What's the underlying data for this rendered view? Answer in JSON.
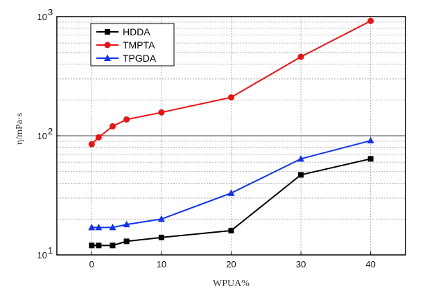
{
  "chart_data": {
    "type": "line",
    "xlabel": "WPUA%",
    "ylabel": "η/mPa·s",
    "yscale": "log",
    "xlim": [
      -5,
      45
    ],
    "ylim": [
      10,
      1000
    ],
    "grid": true,
    "legend_position": "top-left",
    "x_ticks": [
      0,
      10,
      20,
      30,
      40
    ],
    "x_tick_labels": [
      "0",
      "10",
      "20",
      "30",
      "40"
    ],
    "y_ticks": [
      10,
      100,
      1000
    ],
    "y_tick_labels": [
      {
        "base": "10",
        "exp": "1"
      },
      {
        "base": "10",
        "exp": "2"
      },
      {
        "base": "10",
        "exp": "3"
      }
    ],
    "series": [
      {
        "name": "HDDA",
        "color": "#000000",
        "marker": "square",
        "x": [
          0,
          1,
          3,
          5,
          10,
          20,
          30,
          40
        ],
        "y": [
          12,
          12,
          12,
          13,
          14,
          16,
          47,
          64
        ]
      },
      {
        "name": "TMPTA",
        "color": "#ee1111",
        "marker": "circle",
        "x": [
          0,
          1,
          3,
          5,
          10,
          20,
          30,
          40
        ],
        "y": [
          85,
          97,
          120,
          137,
          157,
          210,
          460,
          920
        ]
      },
      {
        "name": "TPGDA",
        "color": "#1133ee",
        "marker": "triangle",
        "x": [
          0,
          1,
          3,
          5,
          10,
          20,
          30,
          40
        ],
        "y": [
          17,
          17,
          17,
          18,
          20,
          33,
          64,
          91
        ]
      }
    ]
  }
}
